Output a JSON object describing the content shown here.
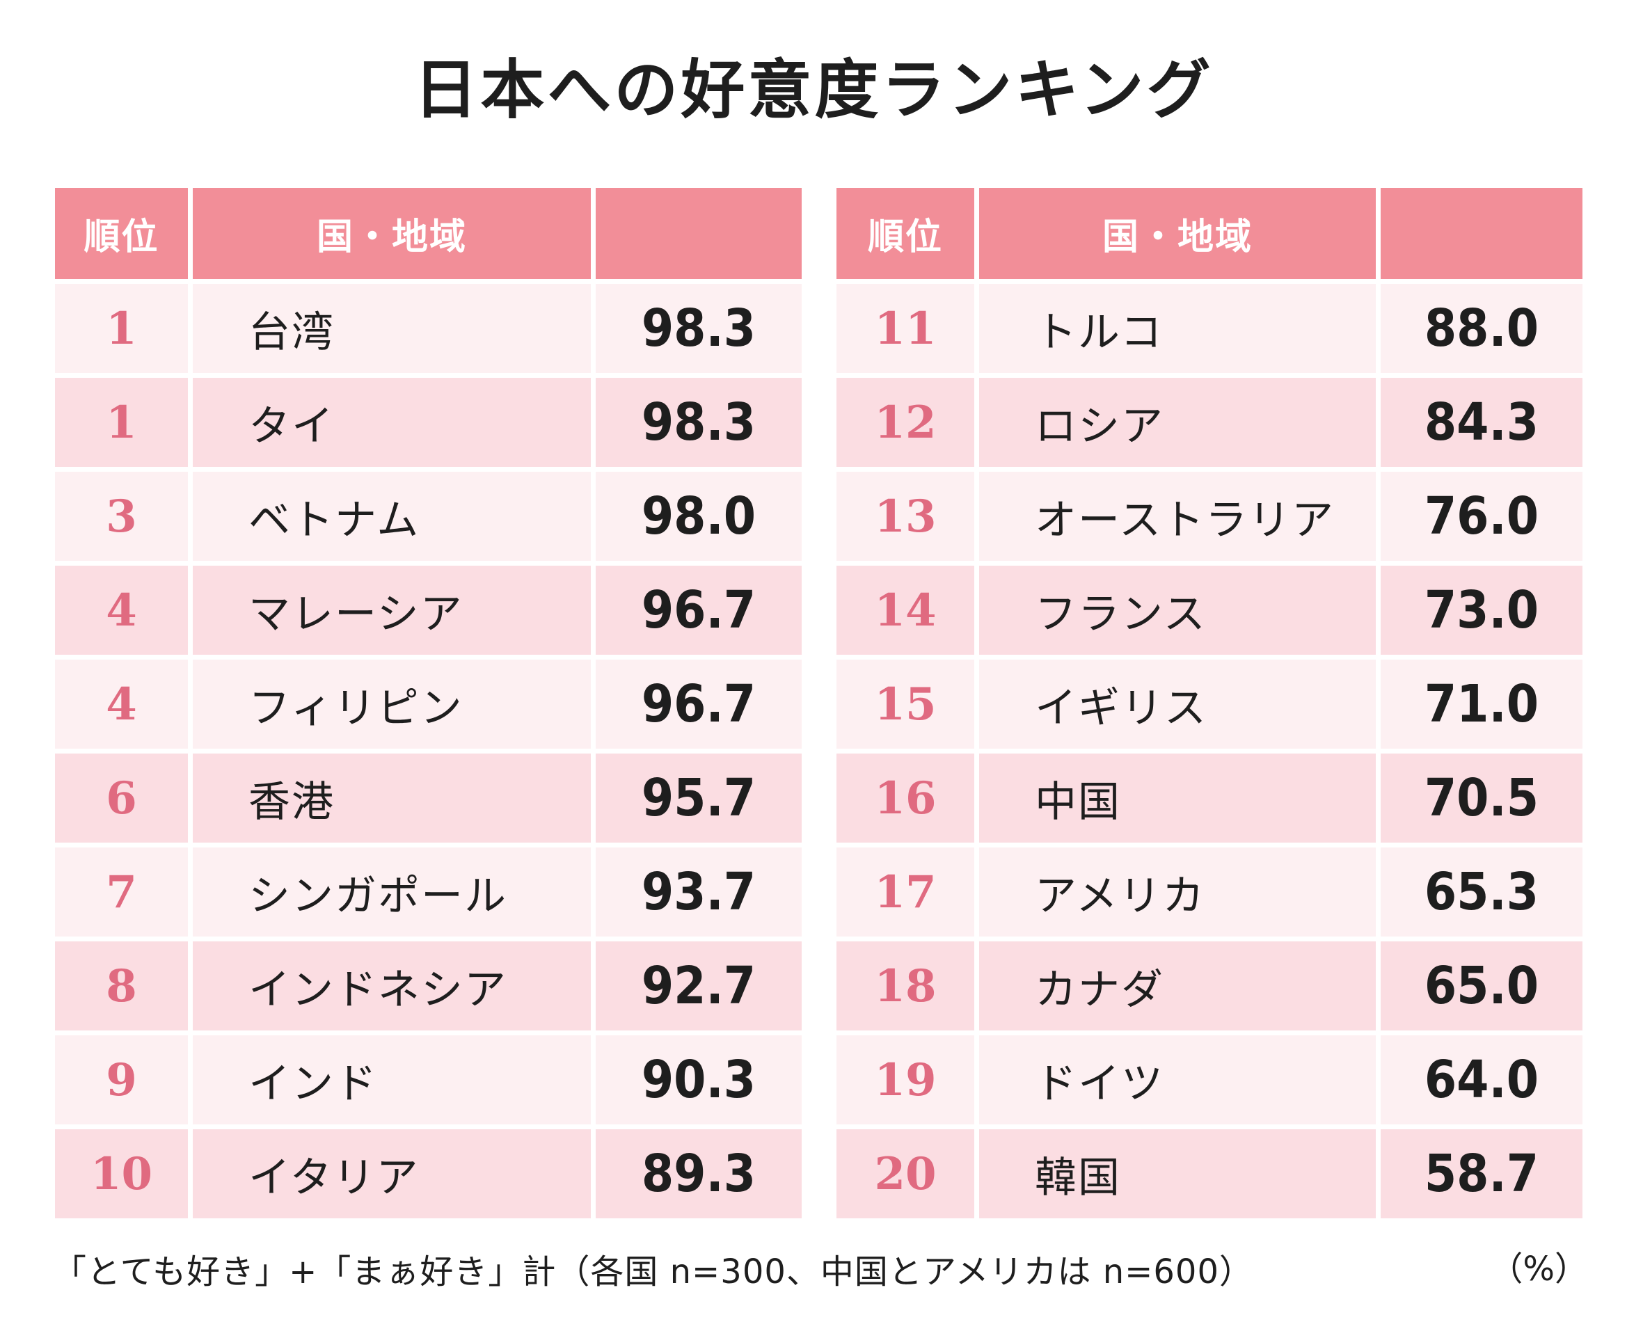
{
  "title": "日本への好意度ランキング",
  "headers": {
    "rank": "順位",
    "country": "国・地域",
    "value": ""
  },
  "chart_data": {
    "type": "table",
    "title": "日本への好意度ランキング",
    "columns": [
      "順位",
      "国・地域",
      ""
    ],
    "rows": [
      {
        "rank": "1",
        "country": "台湾",
        "value": "98.3"
      },
      {
        "rank": "1",
        "country": "タイ",
        "value": "98.3"
      },
      {
        "rank": "3",
        "country": "ベトナム",
        "value": "98.0"
      },
      {
        "rank": "4",
        "country": "マレーシア",
        "value": "96.7"
      },
      {
        "rank": "4",
        "country": "フィリピン",
        "value": "96.7"
      },
      {
        "rank": "6",
        "country": "香港",
        "value": "95.7"
      },
      {
        "rank": "7",
        "country": "シンガポール",
        "value": "93.7"
      },
      {
        "rank": "8",
        "country": "インドネシア",
        "value": "92.7"
      },
      {
        "rank": "9",
        "country": "インド",
        "value": "90.3"
      },
      {
        "rank": "10",
        "country": "イタリア",
        "value": "89.3"
      },
      {
        "rank": "11",
        "country": "トルコ",
        "value": "88.0"
      },
      {
        "rank": "12",
        "country": "ロシア",
        "value": "84.3"
      },
      {
        "rank": "13",
        "country": "オーストラリア",
        "value": "76.0"
      },
      {
        "rank": "14",
        "country": "フランス",
        "value": "73.0"
      },
      {
        "rank": "15",
        "country": "イギリス",
        "value": "71.0"
      },
      {
        "rank": "16",
        "country": "中国",
        "value": "70.5"
      },
      {
        "rank": "17",
        "country": "アメリカ",
        "value": "65.3"
      },
      {
        "rank": "18",
        "country": "カナダ",
        "value": "65.0"
      },
      {
        "rank": "19",
        "country": "ドイツ",
        "value": "64.0"
      },
      {
        "rank": "20",
        "country": "韓国",
        "value": "58.7"
      }
    ],
    "unit": "（%）"
  },
  "footnote": "「とても好き」+「まぁ好き」計（各国 n=300、中国とアメリカは n=600）",
  "unit": "（%）",
  "colors": {
    "header_bg": "#f28e98",
    "row_light": "#fdf0f2",
    "row_dark": "#fbdde2",
    "rank_text": "#e06a80"
  }
}
